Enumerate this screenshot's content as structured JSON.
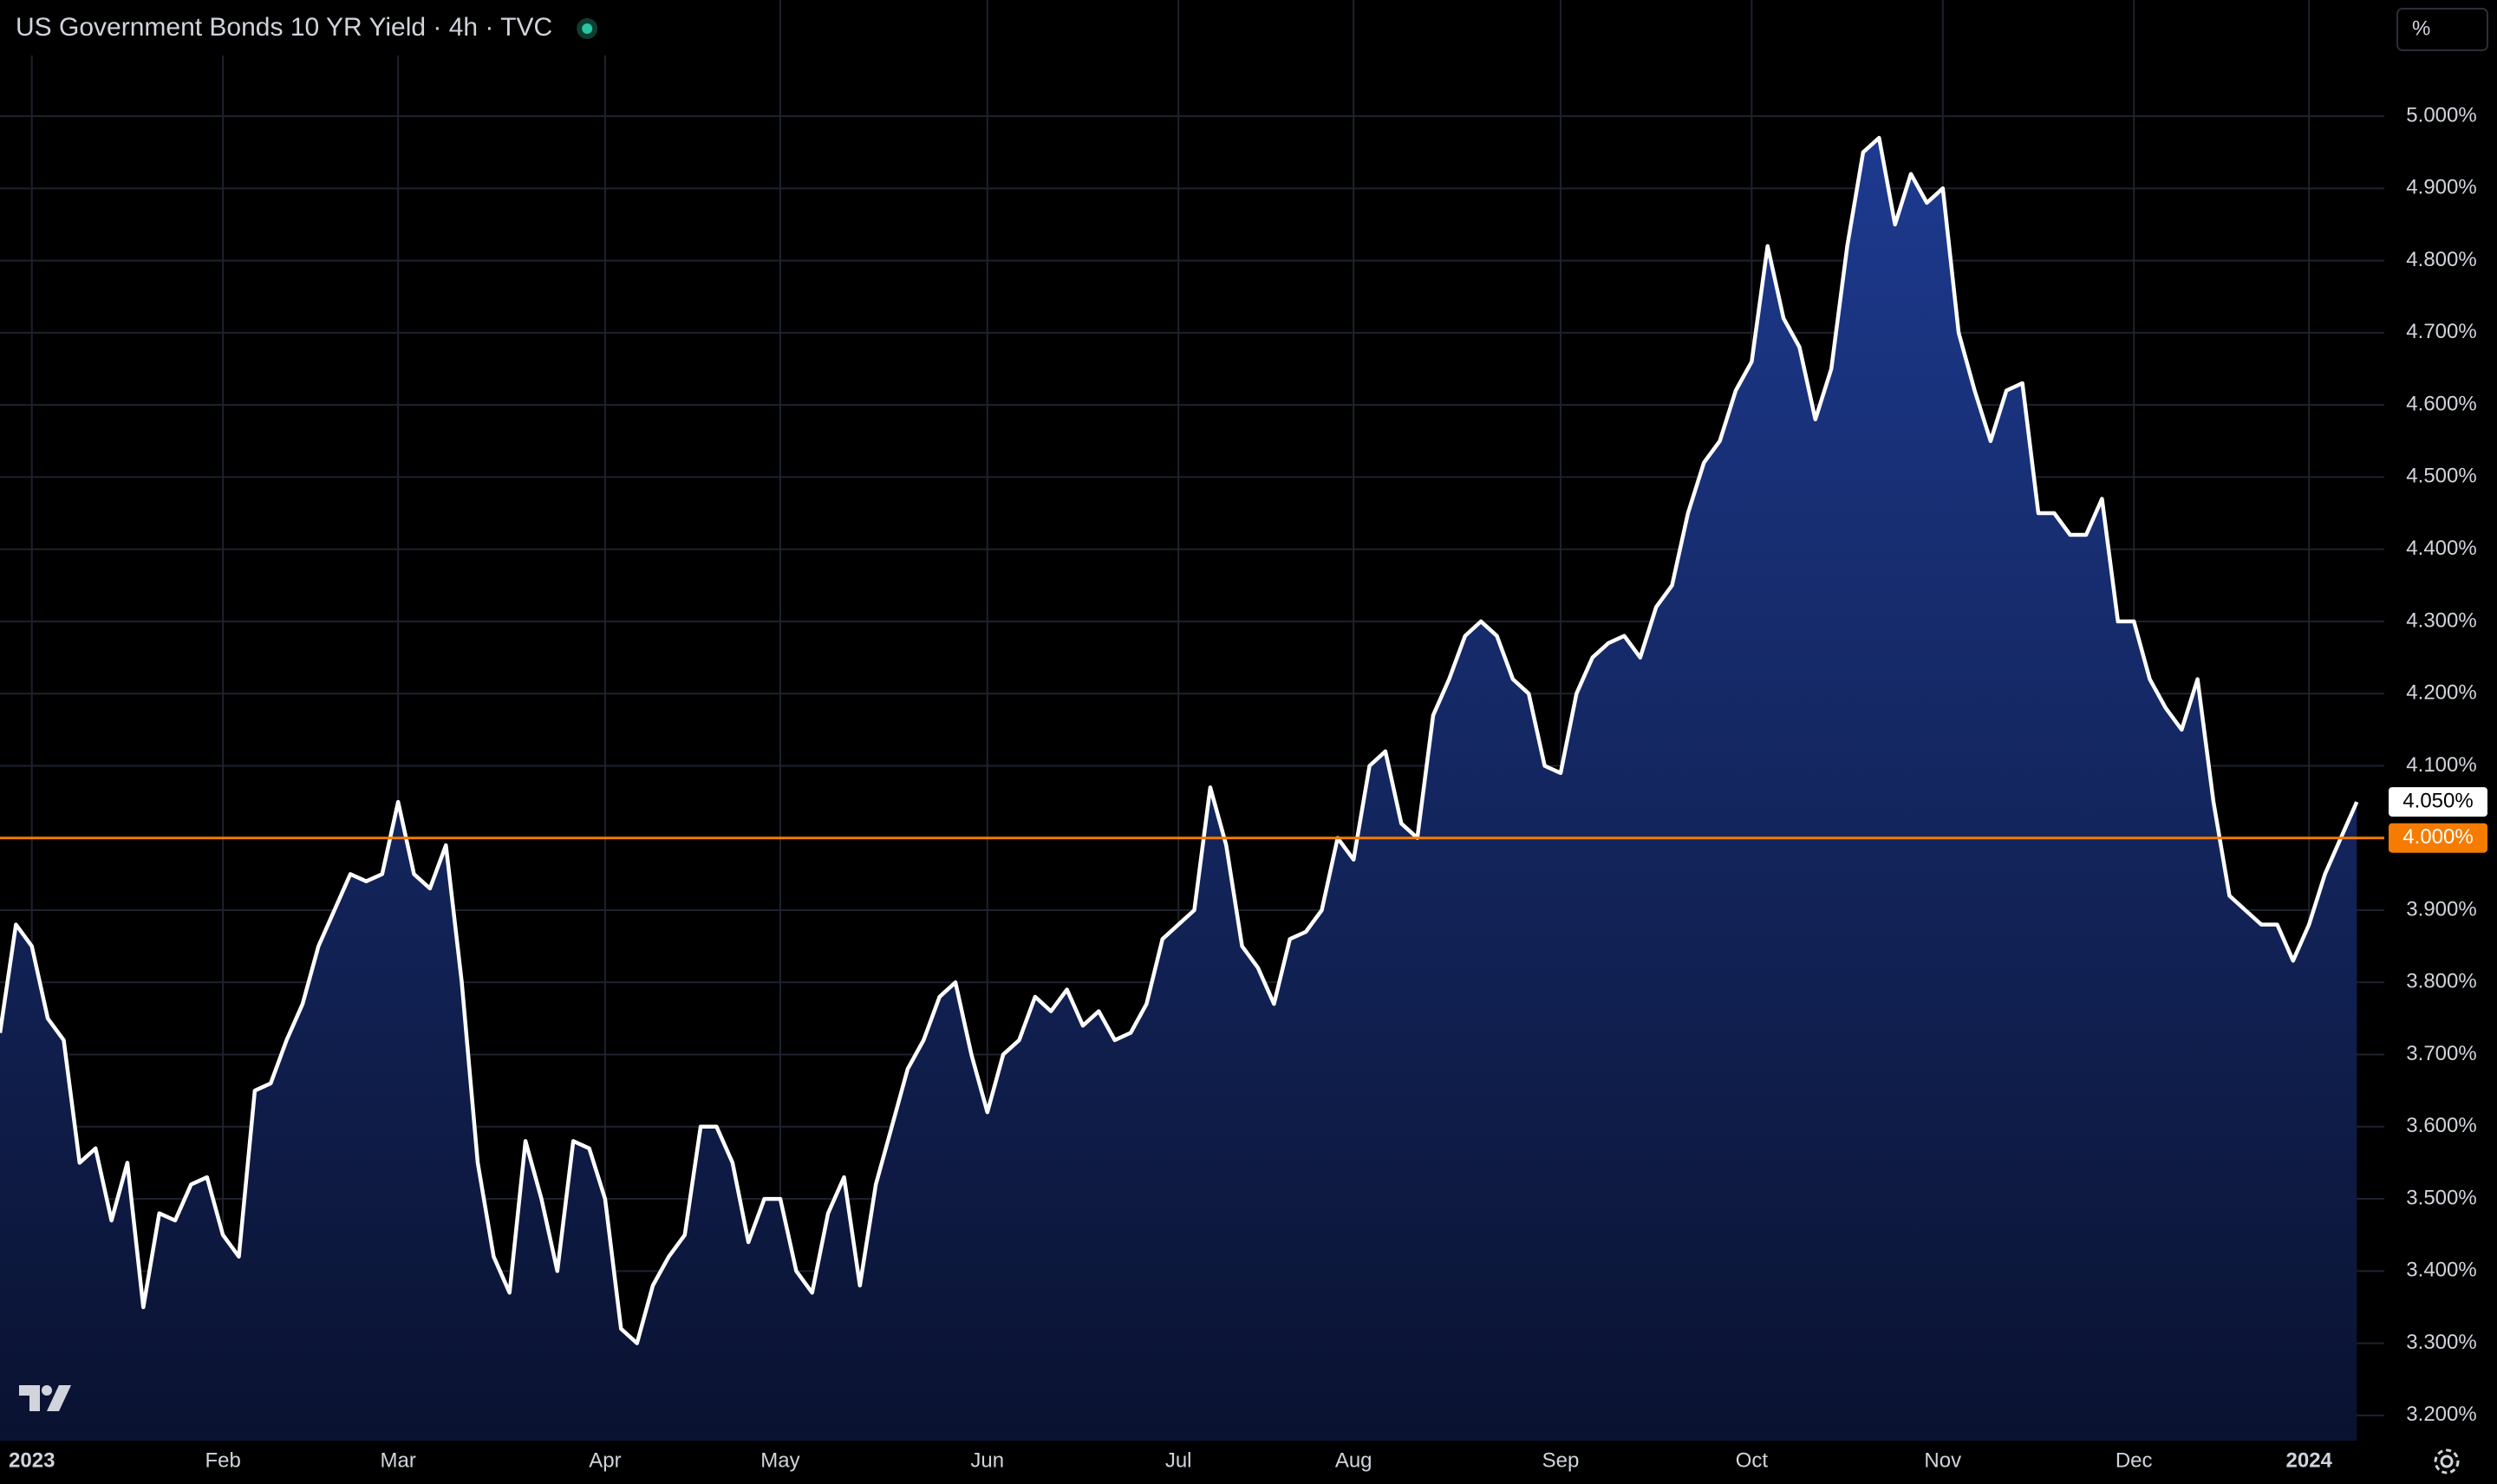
{
  "chart_data": {
    "type": "area",
    "title": "US Government Bonds 10 YR Yield · 4h · TVC",
    "unit_button": "%",
    "color": "#ffffff",
    "fill_top": "#1d3a8f",
    "fill_bottom": "#0a1230",
    "grid": true,
    "categories": [
      null,
      null,
      "2023",
      null,
      null,
      null,
      null,
      null,
      null,
      null,
      null,
      null,
      null,
      null,
      "Feb",
      null,
      null,
      null,
      null,
      null,
      null,
      null,
      null,
      null,
      null,
      "Mar",
      null,
      null,
      null,
      null,
      null,
      null,
      null,
      null,
      null,
      null,
      null,
      null,
      "Apr",
      null,
      null,
      null,
      null,
      null,
      null,
      null,
      null,
      null,
      null,
      "May",
      null,
      null,
      null,
      null,
      null,
      null,
      null,
      null,
      null,
      null,
      null,
      null,
      "Jun",
      null,
      null,
      null,
      null,
      null,
      null,
      null,
      null,
      null,
      null,
      null,
      "Jul",
      null,
      null,
      null,
      null,
      null,
      null,
      null,
      null,
      null,
      null,
      "Aug",
      null,
      null,
      null,
      null,
      null,
      null,
      null,
      null,
      null,
      null,
      null,
      null,
      "Sep",
      null,
      null,
      null,
      null,
      null,
      null,
      null,
      null,
      null,
      null,
      null,
      "Oct",
      null,
      null,
      null,
      null,
      null,
      null,
      null,
      null,
      null,
      null,
      null,
      "Nov",
      null,
      null,
      null,
      null,
      null,
      null,
      null,
      null,
      null,
      null,
      null,
      "Dec",
      null,
      null,
      null,
      null,
      null,
      null,
      null,
      null,
      null,
      null,
      "2024",
      null,
      null,
      null
    ],
    "values": [
      3.73,
      3.88,
      3.85,
      3.75,
      3.72,
      3.55,
      3.57,
      3.47,
      3.55,
      3.35,
      3.48,
      3.47,
      3.52,
      3.53,
      3.45,
      3.42,
      3.65,
      3.66,
      3.72,
      3.77,
      3.85,
      3.9,
      3.95,
      3.94,
      3.95,
      4.05,
      3.95,
      3.93,
      3.99,
      3.8,
      3.55,
      3.42,
      3.37,
      3.58,
      3.5,
      3.4,
      3.58,
      3.57,
      3.5,
      3.32,
      3.3,
      3.38,
      3.42,
      3.45,
      3.6,
      3.6,
      3.55,
      3.44,
      3.5,
      3.5,
      3.4,
      3.37,
      3.48,
      3.53,
      3.38,
      3.52,
      3.6,
      3.68,
      3.72,
      3.78,
      3.8,
      3.7,
      3.62,
      3.7,
      3.72,
      3.78,
      3.76,
      3.79,
      3.74,
      3.76,
      3.72,
      3.73,
      3.77,
      3.86,
      3.88,
      3.9,
      4.07,
      3.99,
      3.85,
      3.82,
      3.77,
      3.86,
      3.87,
      3.9,
      4.0,
      3.97,
      4.1,
      4.12,
      4.02,
      4.0,
      4.17,
      4.22,
      4.28,
      4.3,
      4.28,
      4.22,
      4.2,
      4.1,
      4.09,
      4.2,
      4.25,
      4.27,
      4.28,
      4.25,
      4.32,
      4.35,
      4.45,
      4.52,
      4.55,
      4.62,
      4.66,
      4.82,
      4.72,
      4.68,
      4.58,
      4.65,
      4.82,
      4.95,
      4.97,
      4.85,
      4.92,
      4.88,
      4.9,
      4.7,
      4.62,
      4.55,
      4.62,
      4.63,
      4.45,
      4.45,
      4.42,
      4.42,
      4.47,
      4.3,
      4.3,
      4.22,
      4.18,
      4.15,
      4.22,
      4.05,
      3.92,
      3.9,
      3.88,
      3.88,
      3.83,
      3.88,
      3.95,
      4.0,
      4.05
    ],
    "ylim": [
      3.165,
      5.161
    ],
    "yticks": [
      {
        "value": 3.2,
        "label": "3.200%"
      },
      {
        "value": 3.3,
        "label": "3.300%"
      },
      {
        "value": 3.4,
        "label": "3.400%"
      },
      {
        "value": 3.5,
        "label": "3.500%"
      },
      {
        "value": 3.6,
        "label": "3.600%"
      },
      {
        "value": 3.7,
        "label": "3.700%"
      },
      {
        "value": 3.8,
        "label": "3.800%"
      },
      {
        "value": 3.9,
        "label": "3.900%"
      },
      {
        "value": 4.0,
        "label": "4.000%"
      },
      {
        "value": 4.1,
        "label": "4.100%"
      },
      {
        "value": 4.2,
        "label": "4.200%"
      },
      {
        "value": 4.3,
        "label": "4.300%"
      },
      {
        "value": 4.4,
        "label": "4.400%"
      },
      {
        "value": 4.5,
        "label": "4.500%"
      },
      {
        "value": 4.6,
        "label": "4.600%"
      },
      {
        "value": 4.7,
        "label": "4.700%"
      },
      {
        "value": 4.8,
        "label": "4.800%"
      },
      {
        "value": 4.9,
        "label": "4.900%"
      },
      {
        "value": 5.0,
        "label": "5.000%"
      }
    ],
    "price_line": {
      "value": 4.0,
      "label": "4.000%",
      "color": "#f57c00"
    },
    "current_value": {
      "value": 4.05,
      "label": "4.050%"
    }
  }
}
